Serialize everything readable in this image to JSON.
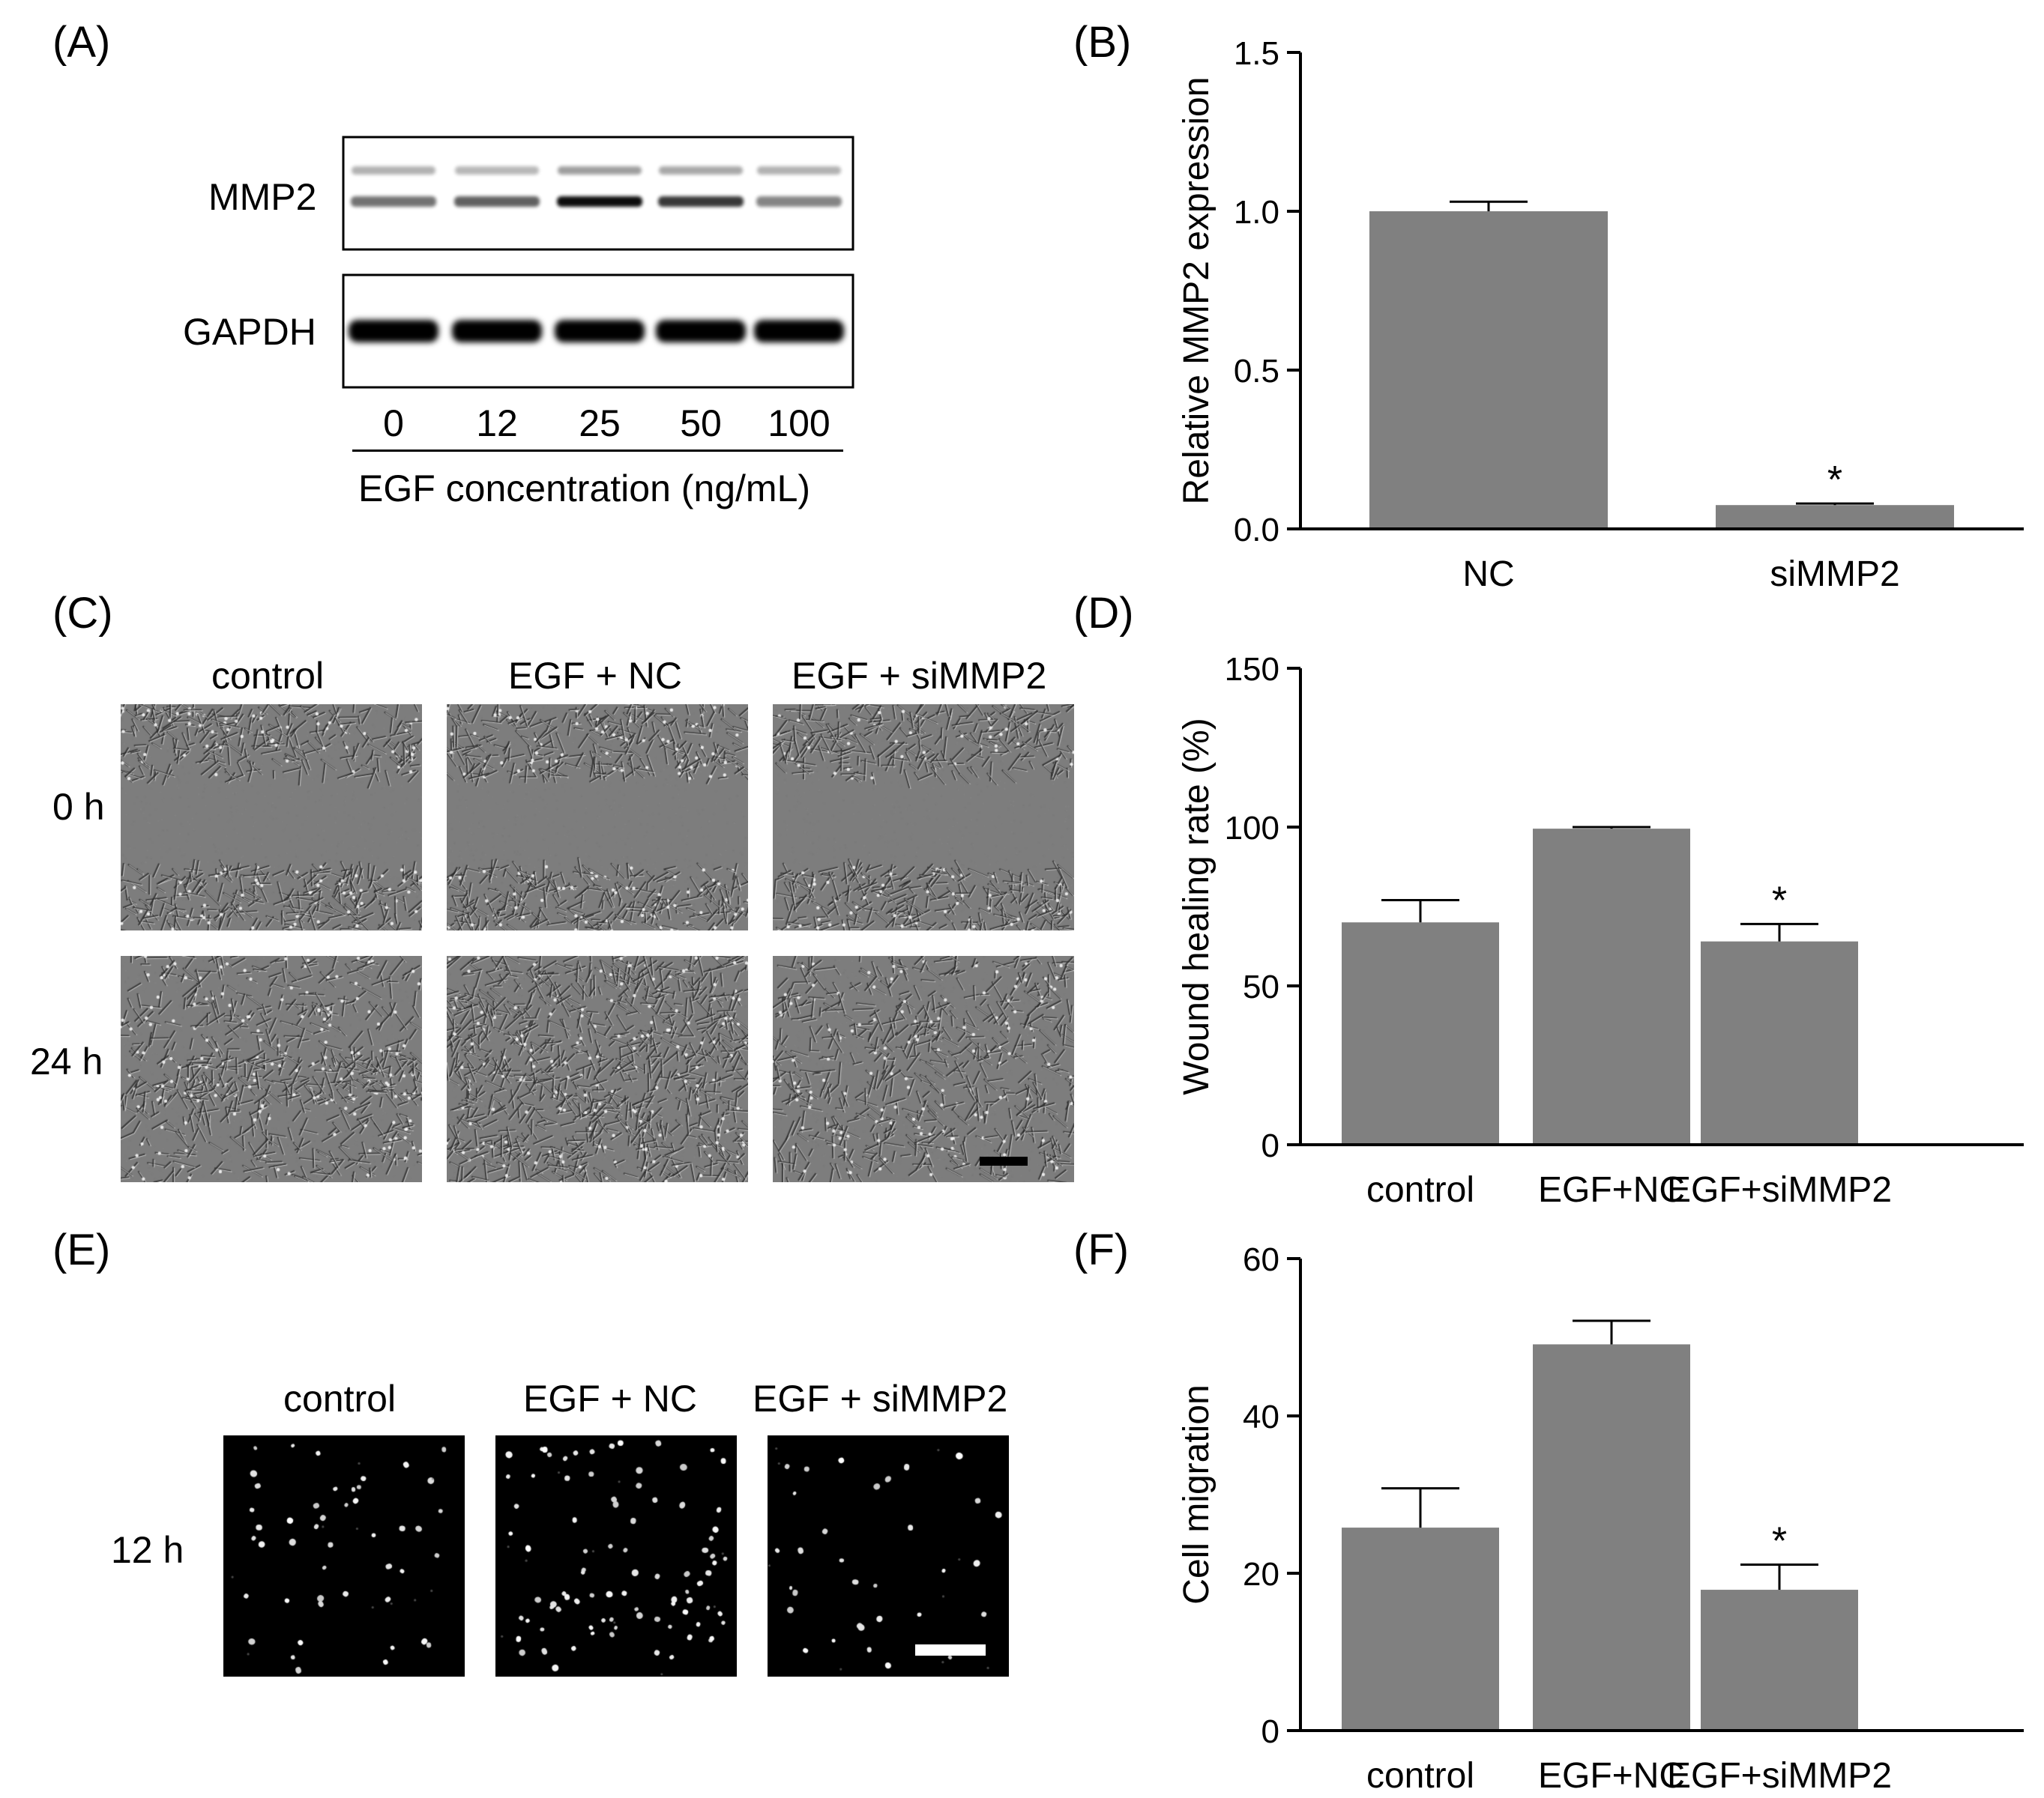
{
  "panels": {
    "a": "(A)",
    "b": "(B)",
    "c": "(C)",
    "d": "(D)",
    "e": "(E)",
    "f": "(F)"
  },
  "blot": {
    "rows": [
      "MMP2",
      "GAPDH"
    ],
    "mmp2_upper_band_intensity": [
      0.3,
      0.28,
      0.38,
      0.34,
      0.3
    ],
    "mmp2_lower_band_intensity": [
      0.55,
      0.62,
      0.95,
      0.78,
      0.48
    ],
    "gapdh_band_intensity": [
      1.0,
      1.0,
      1.0,
      1.0,
      1.0
    ],
    "lanes": [
      "0",
      "12",
      "25",
      "50",
      "100"
    ],
    "axis_label": "EGF concentration (ng/mL)"
  },
  "wound": {
    "columns": [
      "control",
      "EGF + NC",
      "EGF + siMMP2"
    ],
    "rows": [
      "0 h",
      "24 h"
    ]
  },
  "transwell": {
    "columns": [
      "control",
      "EGF + NC",
      "EGF + siMMP2"
    ],
    "row": "12 h"
  },
  "colors": {
    "bar": "#808080",
    "axis": "#000000",
    "blot_bg": "#ffffff",
    "cells_bg": "#000000"
  },
  "chart_data": [
    {
      "panel": "B",
      "type": "bar",
      "categories": [
        "NC",
        "siMMP2"
      ],
      "values": [
        1.0,
        0.075
      ],
      "errors": [
        0.03,
        0.005
      ],
      "annotations": [
        "",
        "*"
      ],
      "ylabel": "Relative MMP2 expression",
      "ylim": [
        0,
        1.5
      ],
      "yticks": [
        "0.0",
        "0.5",
        "1.0",
        "1.5"
      ],
      "ytick_values": [
        0,
        0.5,
        1.0,
        1.5
      ]
    },
    {
      "panel": "D",
      "type": "bar",
      "categories": [
        "control",
        "EGF+NC",
        "EGF+siMMP2"
      ],
      "values": [
        70,
        99.5,
        64
      ],
      "errors": [
        7,
        0.5,
        5.5
      ],
      "annotations": [
        "",
        "",
        "*"
      ],
      "ylabel": "Wound healing rate  (%)",
      "ylim": [
        0,
        150
      ],
      "yticks": [
        "0",
        "50",
        "100",
        "150"
      ],
      "ytick_values": [
        0,
        50,
        100,
        150
      ]
    },
    {
      "panel": "F",
      "type": "bar",
      "categories": [
        "control",
        "EGF+NC",
        "EGF+siMMP2"
      ],
      "values": [
        25.8,
        49.1,
        17.9
      ],
      "errors": [
        5.0,
        3.0,
        3.2
      ],
      "annotations": [
        "",
        "",
        "*"
      ],
      "ylabel": "Cell migration",
      "ylim": [
        0,
        60
      ],
      "yticks": [
        "0",
        "20",
        "40",
        "60"
      ],
      "ytick_values": [
        0,
        20,
        40,
        60
      ]
    }
  ]
}
